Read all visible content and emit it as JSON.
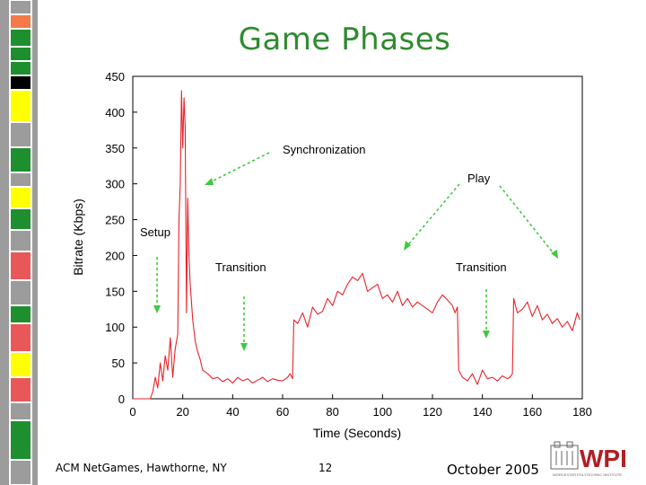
{
  "slide": {
    "title": "Game Phases",
    "footer_left": "ACM NetGames, Hawthorne, NY",
    "page_number": "12",
    "footer_right": "October 2005",
    "logo_text": "WPI",
    "logo_subtext": "WORCESTER POLYTECHNIC INSTITUTE",
    "title_color": "#2e8b2e",
    "series_color": "#e8232a",
    "arrow_color": "#3ec93e",
    "strip_colors": [
      "#9c9c9c",
      "#f47a4a",
      "#1e8f2e",
      "#000000",
      "#ffff00",
      "#e85858",
      "#f0f0a0"
    ]
  },
  "chart_data": {
    "type": "line",
    "title": "",
    "xlabel": "Time (Seconds)",
    "ylabel": "Bitrate (Kbps)",
    "xlim": [
      0,
      180
    ],
    "ylim": [
      0,
      450
    ],
    "x_ticks": [
      "0",
      "20",
      "40",
      "60",
      "80",
      "100",
      "120",
      "140",
      "160",
      "180"
    ],
    "y_ticks": [
      "0",
      "50",
      "100",
      "150",
      "200",
      "250",
      "300",
      "350",
      "400",
      "450"
    ],
    "grid": false,
    "legend": "none",
    "series": [
      {
        "x": [
          0,
          7,
          8,
          9,
          10,
          11,
          12,
          13,
          14,
          15,
          16,
          17,
          18,
          18.5,
          19,
          19.5,
          20,
          20.5,
          21,
          21.5,
          22,
          22.5,
          23,
          24,
          25,
          26,
          27,
          28,
          30,
          32,
          34,
          36,
          38,
          40,
          42,
          44,
          46,
          48,
          50,
          52,
          54,
          56,
          58,
          60,
          62,
          63,
          64,
          64.5,
          66,
          68,
          70,
          72,
          74,
          76,
          78,
          80,
          82,
          84,
          86,
          88,
          90,
          92,
          94,
          96,
          98,
          100,
          102,
          104,
          106,
          108,
          110,
          112,
          114,
          116,
          118,
          120,
          122,
          124,
          126,
          128,
          129,
          130,
          130.5,
          132,
          134,
          136,
          138,
          140,
          142,
          144,
          146,
          148,
          150,
          151,
          152,
          152.5,
          154,
          156,
          158,
          160,
          162,
          164,
          166,
          168,
          170,
          172,
          174,
          176,
          178,
          179
        ],
        "y": [
          0,
          0,
          10,
          30,
          15,
          50,
          25,
          60,
          40,
          85,
          30,
          70,
          90,
          250,
          300,
          430,
          350,
          420,
          380,
          120,
          280,
          200,
          160,
          110,
          80,
          65,
          55,
          40,
          35,
          28,
          30,
          24,
          28,
          22,
          30,
          25,
          28,
          22,
          26,
          30,
          24,
          28,
          26,
          25,
          30,
          35,
          28,
          110,
          105,
          120,
          100,
          128,
          118,
          122,
          140,
          130,
          150,
          145,
          160,
          170,
          165,
          175,
          150,
          155,
          160,
          140,
          145,
          135,
          150,
          130,
          140,
          128,
          135,
          130,
          125,
          120,
          135,
          145,
          138,
          130,
          120,
          128,
          40,
          30,
          25,
          35,
          20,
          40,
          28,
          30,
          25,
          32,
          28,
          30,
          35,
          140,
          120,
          125,
          135,
          115,
          130,
          110,
          118,
          105,
          112,
          100,
          108,
          95,
          120,
          110
        ]
      }
    ],
    "annotations": [
      "Synchronization",
      "Play",
      "Setup",
      "Transition",
      "Transition"
    ]
  }
}
